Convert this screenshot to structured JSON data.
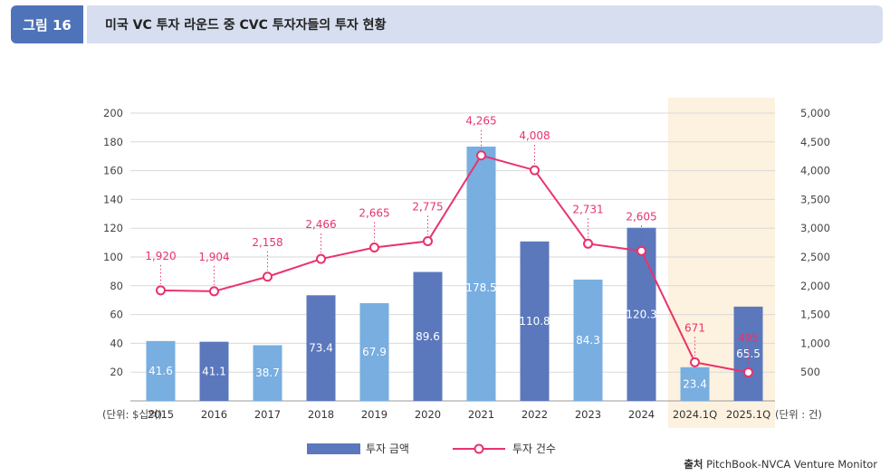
{
  "figure": {
    "number": "그림 16",
    "title": "미국 VC 투자 라운드 중 CVC 투자자들의 투자 현황"
  },
  "source": {
    "prefix": "출처",
    "text": "PitchBook-NVCA Venture Monitor"
  },
  "colors": {
    "bar_dark": "#5b78bd",
    "bar_light": "#78aee0",
    "line": "#e8336c",
    "highlight": "#fdf1df",
    "grid": "#d9d9d9",
    "badge": "#4f73b8",
    "title_bar": "#d6deef"
  },
  "chart_data": {
    "type": "bar",
    "categories": [
      "2015",
      "2016",
      "2017",
      "2018",
      "2019",
      "2020",
      "2021",
      "2022",
      "2023",
      "2024",
      "2024.1Q",
      "2025.1Q"
    ],
    "series": [
      {
        "name": "투자 금액",
        "type": "bar",
        "axis": "left",
        "values": [
          41.6,
          41.1,
          38.7,
          73.4,
          67.9,
          89.6,
          178.5,
          110.8,
          84.3,
          120.3,
          23.4,
          65.5
        ],
        "labels": [
          "41.6",
          "41.1",
          "38.7",
          "73.4",
          "67.9",
          "89.6",
          "178.5",
          "110.8",
          "84.3",
          "120.3",
          "23.4",
          "65.5"
        ],
        "bar_tones": [
          "light",
          "dark",
          "light",
          "dark",
          "light",
          "dark",
          "light",
          "dark",
          "light",
          "dark",
          "light",
          "dark"
        ]
      },
      {
        "name": "투자 건수",
        "type": "line",
        "axis": "right",
        "values": [
          1920,
          1904,
          2158,
          2466,
          2665,
          2775,
          4265,
          4008,
          2731,
          2605,
          671,
          495
        ],
        "labels": [
          "1,920",
          "1,904",
          "2,158",
          "2,466",
          "2,665",
          "2,775",
          "4,265",
          "4,008",
          "2,731",
          "2,605",
          "671",
          "495"
        ]
      }
    ],
    "y_left": {
      "ylim": [
        0,
        200
      ],
      "ticks": [
        "20",
        "40",
        "60",
        "80",
        "100",
        "120",
        "140",
        "160",
        "180",
        "200"
      ],
      "unit_label": "(단위: $십억)"
    },
    "y_right": {
      "ylim": [
        0,
        5000
      ],
      "ticks": [
        "500",
        "1,000",
        "1,500",
        "2,000",
        "2,500",
        "3,000",
        "3,500",
        "4,000",
        "4,500",
        "5,000"
      ],
      "unit_label": "(단위 : 건)"
    },
    "highlight_categories": [
      "2024.1Q",
      "2025.1Q"
    ],
    "grid": true,
    "legend_position": "bottom-center"
  }
}
